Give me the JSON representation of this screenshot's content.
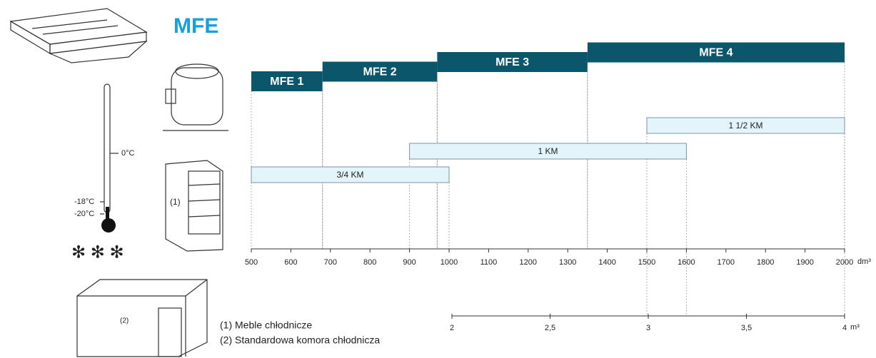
{
  "logo": "MFE",
  "chart_data": {
    "type": "range-bar",
    "models": {
      "color": "#0b566b",
      "series": [
        {
          "name": "MFE 1",
          "values": [
            500,
            680
          ]
        },
        {
          "name": "MFE 2",
          "values": [
            680,
            970
          ]
        },
        {
          "name": "MFE 3",
          "values": [
            970,
            1350
          ]
        },
        {
          "name": "MFE 4",
          "values": [
            1350,
            2000
          ]
        }
      ]
    },
    "compressors": {
      "color": "#e3f4fb",
      "series": [
        {
          "name": "1 1/2 KM",
          "values": [
            1500,
            2000
          ]
        },
        {
          "name": "1 KM",
          "values": [
            900,
            1600
          ]
        },
        {
          "name": "3/4 KM",
          "values": [
            500,
            1000
          ]
        }
      ]
    },
    "xlim": [
      500,
      2000
    ],
    "xticks": [
      500,
      600,
      700,
      800,
      900,
      1000,
      1100,
      1200,
      1300,
      1400,
      1500,
      1600,
      1700,
      1800,
      1900,
      2000
    ],
    "x_unit": "dm³",
    "x2lim": [
      2,
      4
    ],
    "x2ticks": [
      2,
      {
        "value": 2.5,
        "label": "2,5"
      },
      3,
      {
        "value": 3.5,
        "label": "3,5"
      },
      4
    ],
    "x2_unit": "m³"
  },
  "illustrations": {
    "thermometer": [
      "0°C",
      "-18°C",
      "-20°C"
    ],
    "cabinet": "(1)",
    "room": "(2)"
  },
  "notes": [
    "(1) Meble chłodnicze",
    "(2) Standardowa komora chłodnicza"
  ]
}
